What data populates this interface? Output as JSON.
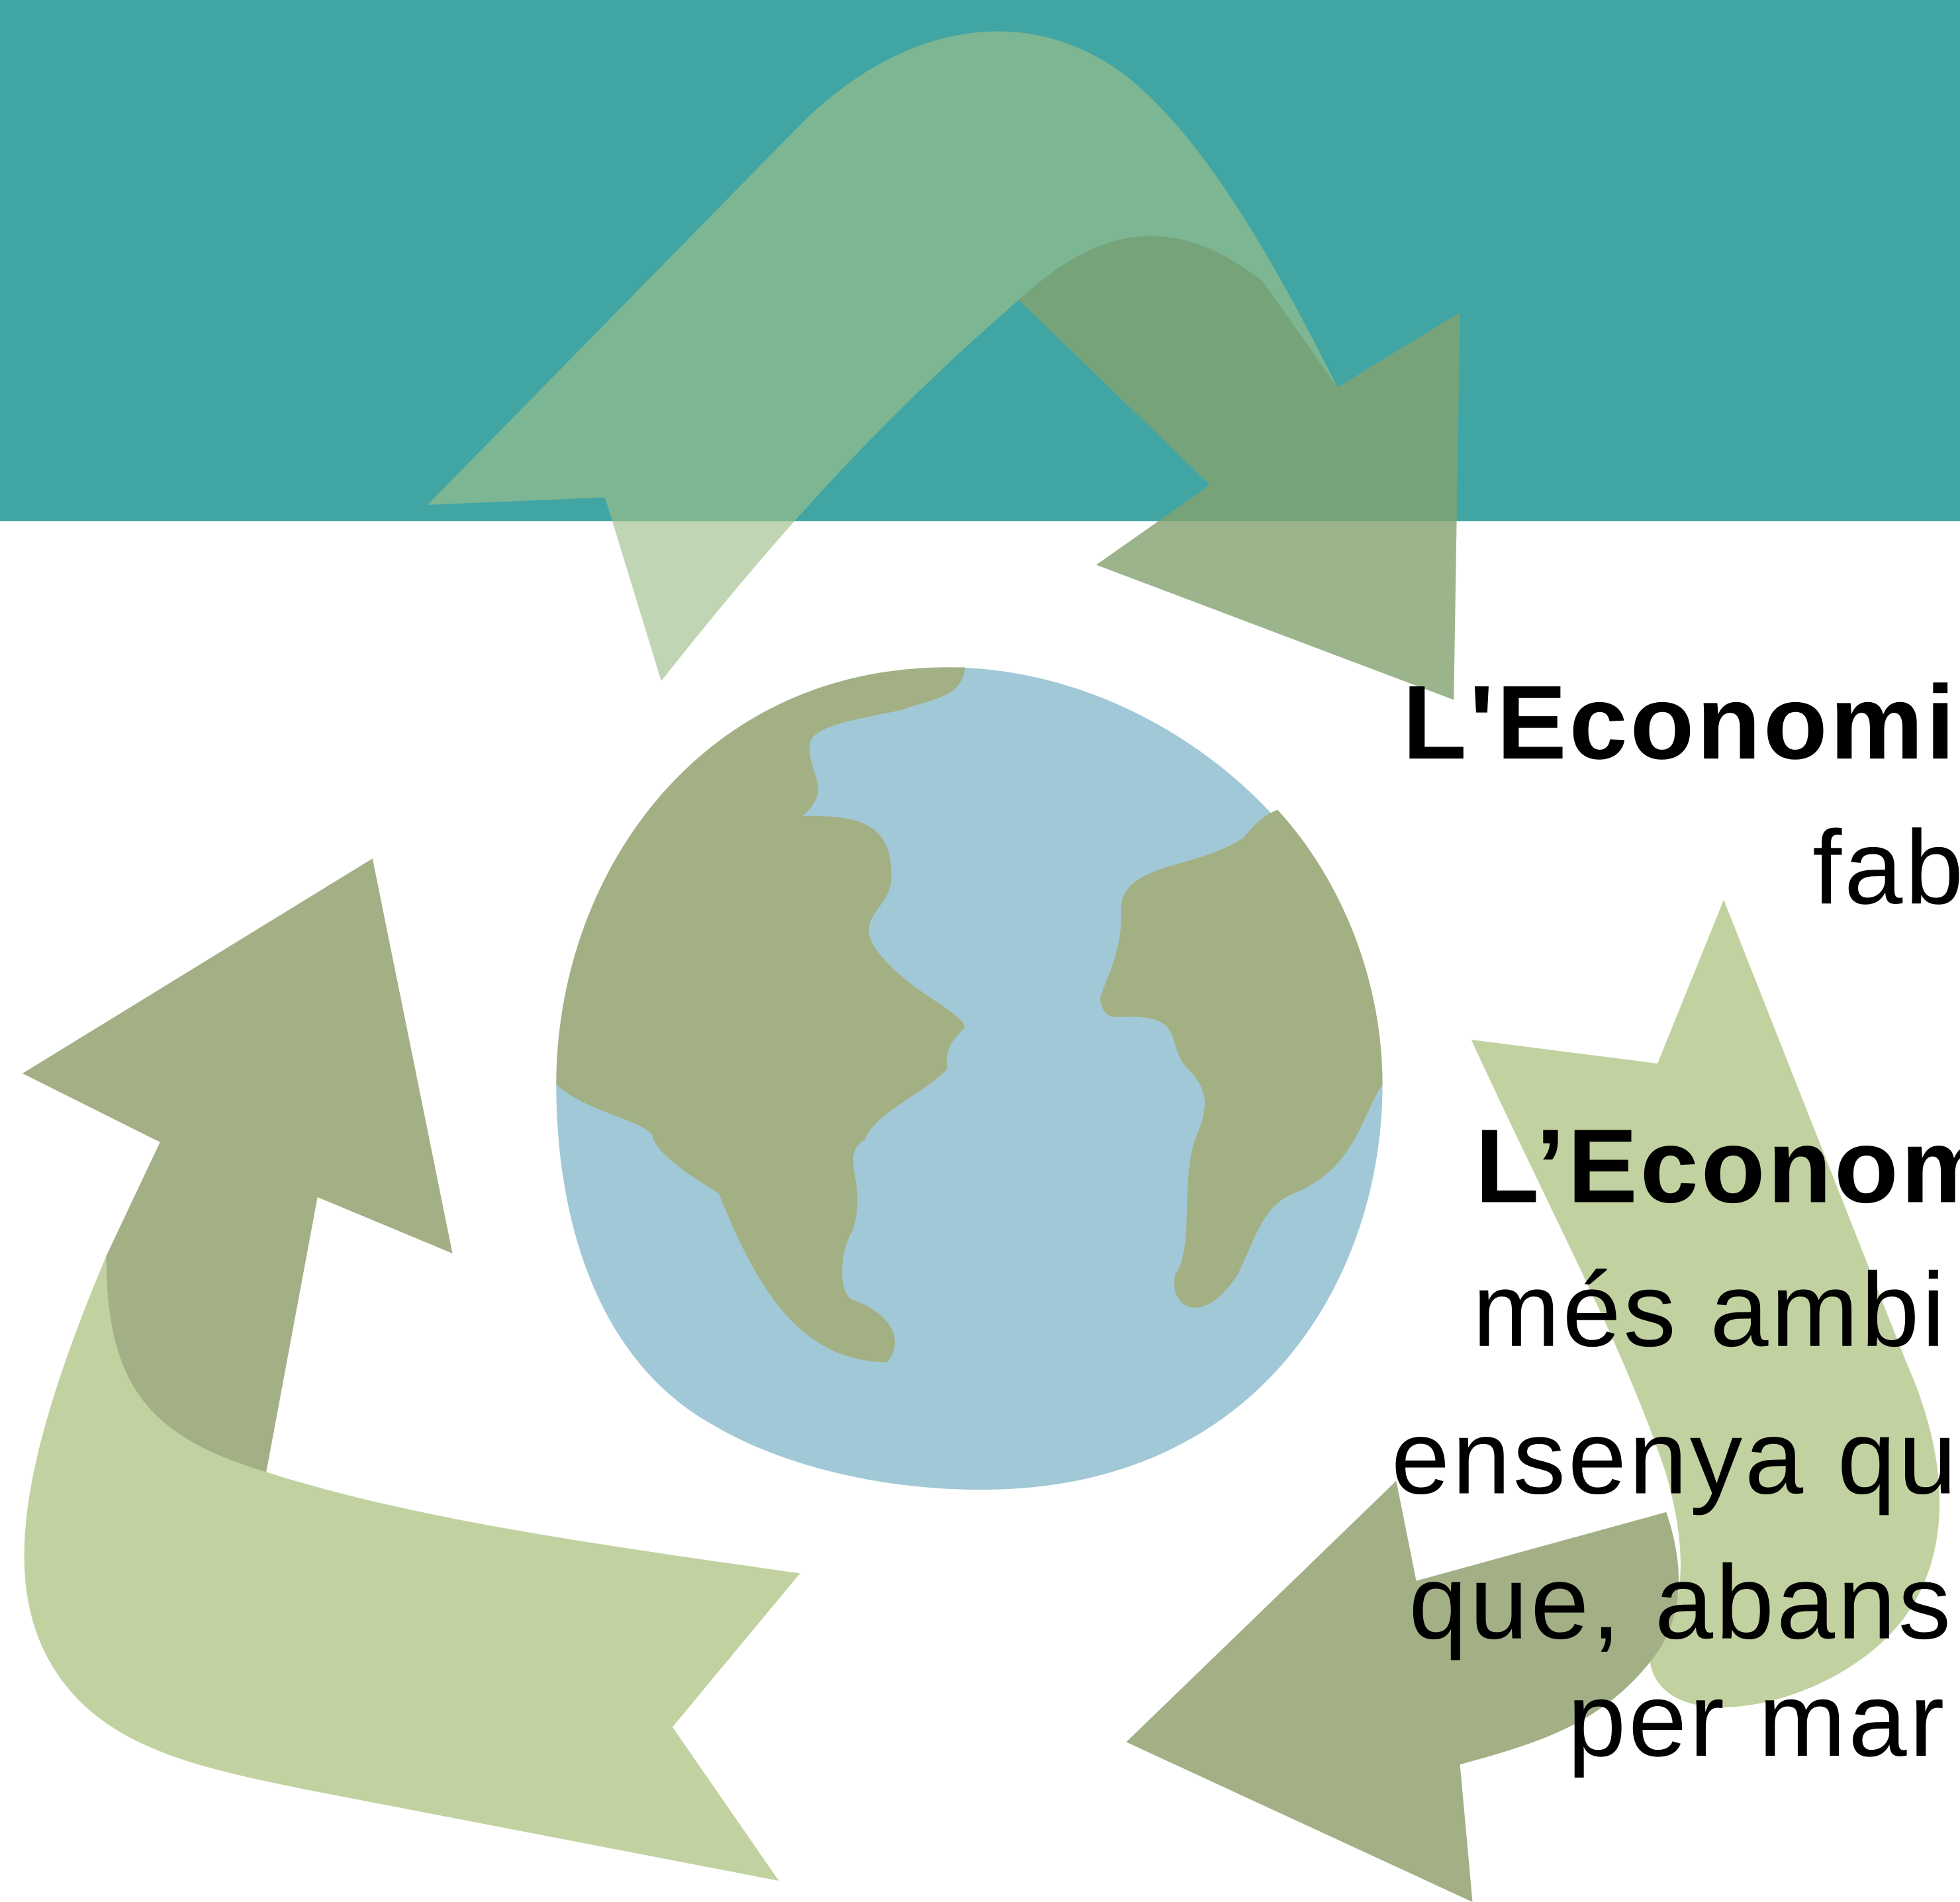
{
  "text": {
    "lines": [
      {
        "text": "L'Economia",
        "bold": true
      },
      {
        "text": "fab",
        "bold": false
      },
      {
        "text": "L’Econom",
        "bold": true
      },
      {
        "text": "més ambi",
        "bold": false
      },
      {
        "text": "ensenya qu",
        "bold": false
      },
      {
        "text": "que, abans",
        "bold": false
      },
      {
        "text": "per mar",
        "bold": false
      }
    ]
  }
}
